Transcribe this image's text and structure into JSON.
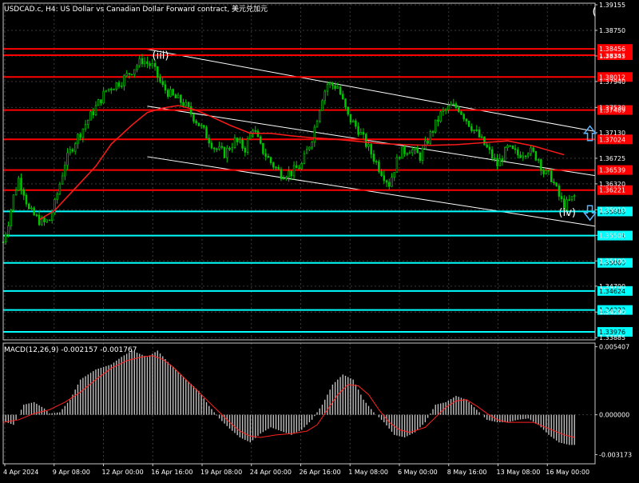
{
  "colors": {
    "background": "#000000",
    "grid": "#3a3a3a",
    "frame": "#c8c8c8",
    "candle": "#00c800",
    "resistance": "#ff0000",
    "support": "#00ffff",
    "channel": "#ffffff",
    "ma": "#ff1a1a",
    "macd_hist": "#c0c0c0",
    "macd_signal": "#ff2020",
    "text": "#ffffff",
    "arrow": "#5ab4ff"
  },
  "chart_data": [
    {
      "type": "candlestick",
      "title": "USDCAD.c, H4:  US Dollar vs Canadian Dollar Forward contract, 美元兑加元",
      "ylim": [
        1.3385,
        1.3918
      ],
      "y_ticks": [
        "1.39155",
        "1.38750",
        "1.38345",
        "1.37940",
        "1.37530",
        "1.37130",
        "1.36725",
        "1.36320",
        "1.35910",
        "1.35505",
        "1.35100",
        "1.34700",
        "1.34290",
        "1.33885"
      ],
      "x_ticks": [
        "4 Apr 2024",
        "9 Apr 08:00",
        "12 Apr 00:00",
        "16 Apr 16:00",
        "19 Apr 08:00",
        "24 Apr 00:00",
        "26 Apr 16:00",
        "1 May 08:00",
        "6 May 00:00",
        "8 May 16:00",
        "13 May 08:00",
        "16 May 00:00"
      ],
      "price_path": [
        [
          0,
          1.354
        ],
        [
          2,
          1.3572
        ],
        [
          4,
          1.3612
        ],
        [
          6,
          1.364
        ],
        [
          8,
          1.362
        ],
        [
          10,
          1.359
        ],
        [
          14,
          1.3574
        ],
        [
          16,
          1.357
        ],
        [
          18,
          1.3575
        ],
        [
          20,
          1.36
        ],
        [
          24,
          1.3665
        ],
        [
          28,
          1.37
        ],
        [
          34,
          1.374
        ],
        [
          40,
          1.378
        ],
        [
          46,
          1.3795
        ],
        [
          50,
          1.3812
        ],
        [
          54,
          1.3828
        ],
        [
          58,
          1.3818
        ],
        [
          62,
          1.3785
        ],
        [
          66,
          1.377
        ],
        [
          70,
          1.376
        ],
        [
          74,
          1.3738
        ],
        [
          78,
          1.3715
        ],
        [
          82,
          1.369
        ],
        [
          86,
          1.368
        ],
        [
          90,
          1.37
        ],
        [
          94,
          1.3688
        ],
        [
          97,
          1.3722
        ],
        [
          100,
          1.369
        ],
        [
          104,
          1.3666
        ],
        [
          108,
          1.3648
        ],
        [
          112,
          1.365
        ],
        [
          116,
          1.3662
        ],
        [
          120,
          1.3705
        ],
        [
          124,
          1.377
        ],
        [
          126,
          1.379
        ],
        [
          130,
          1.3786
        ],
        [
          134,
          1.3738
        ],
        [
          138,
          1.3718
        ],
        [
          142,
          1.3688
        ],
        [
          146,
          1.3658
        ],
        [
          150,
          1.3632
        ],
        [
          154,
          1.368
        ],
        [
          158,
          1.3688
        ],
        [
          162,
          1.3675
        ],
        [
          166,
          1.371
        ],
        [
          170,
          1.3742
        ],
        [
          174,
          1.3755
        ],
        [
          177,
          1.3752
        ],
        [
          181,
          1.3728
        ],
        [
          184,
          1.3712
        ],
        [
          188,
          1.3688
        ],
        [
          192,
          1.3662
        ],
        [
          196,
          1.3688
        ],
        [
          200,
          1.3678
        ],
        [
          204,
          1.3686
        ],
        [
          208,
          1.3672
        ],
        [
          210,
          1.365
        ],
        [
          213,
          1.3642
        ],
        [
          216,
          1.3612
        ],
        [
          218,
          1.3596
        ],
        [
          220,
          1.3604
        ],
        [
          222,
          1.3612
        ]
      ],
      "moving_average": [
        [
          14,
          1.3575
        ],
        [
          20,
          1.359
        ],
        [
          28,
          1.3625
        ],
        [
          36,
          1.366
        ],
        [
          42,
          1.3695
        ],
        [
          50,
          1.3725
        ],
        [
          56,
          1.3745
        ],
        [
          62,
          1.3752
        ],
        [
          68,
          1.3756
        ],
        [
          74,
          1.375
        ],
        [
          80,
          1.374
        ],
        [
          88,
          1.3725
        ],
        [
          96,
          1.3712
        ],
        [
          104,
          1.3712
        ],
        [
          112,
          1.3708
        ],
        [
          120,
          1.3705
        ],
        [
          128,
          1.3703
        ],
        [
          136,
          1.37
        ],
        [
          146,
          1.3696
        ],
        [
          156,
          1.3694
        ],
        [
          166,
          1.3693
        ],
        [
          176,
          1.3694
        ],
        [
          186,
          1.3697
        ],
        [
          196,
          1.37
        ],
        [
          206,
          1.3692
        ],
        [
          212,
          1.3685
        ],
        [
          218,
          1.3678
        ]
      ],
      "resistance_levels": [
        "1.38357",
        "1.38456",
        "1.38012",
        "1.37489",
        "1.37024",
        "1.36539",
        "1.36221"
      ],
      "support_levels": [
        "1.35883",
        "1.35501",
        "1.35069",
        "1.34624",
        "1.34323",
        "1.33976"
      ],
      "channel_lines": [
        {
          "from": [
            56,
            1.3845
          ],
          "to": [
            230,
            1.3715
          ]
        },
        {
          "from": [
            56,
            1.3755
          ],
          "to": [
            230,
            1.3645
          ]
        },
        {
          "from": [
            56,
            1.3675
          ],
          "to": [
            230,
            1.3565
          ]
        }
      ],
      "annotations": [
        {
          "text": "(iii)",
          "x": 61,
          "y": 1.3835
        },
        {
          "text": "(iv)",
          "x": 219,
          "y": 1.3586
        },
        {
          "text": "(",
          "x": 232,
          "y": 1.3905
        }
      ],
      "arrows": [
        {
          "direction": "up",
          "x": 228,
          "y": 1.3712
        },
        {
          "direction": "down",
          "x": 228,
          "y": 1.3586
        }
      ]
    },
    {
      "type": "bar",
      "title": "MACD(12,26,9) -0.002157 -0.001767",
      "ylim": [
        -0.0039,
        0.0057
      ],
      "y_ticks": [
        "0.005407",
        "0.000000",
        "-0.003173"
      ],
      "histogram": [
        [
          0,
          -0.0005
        ],
        [
          4,
          -0.0008
        ],
        [
          8,
          0.0008
        ],
        [
          12,
          0.001
        ],
        [
          16,
          0.0005
        ],
        [
          18,
          0.0001
        ],
        [
          22,
          0.0002
        ],
        [
          26,
          0.0012
        ],
        [
          30,
          0.0028
        ],
        [
          36,
          0.0036
        ],
        [
          42,
          0.004
        ],
        [
          46,
          0.0046
        ],
        [
          50,
          0.0051
        ],
        [
          56,
          0.0046
        ],
        [
          60,
          0.0051
        ],
        [
          64,
          0.0042
        ],
        [
          70,
          0.003
        ],
        [
          76,
          0.0019
        ],
        [
          80,
          0.0007
        ],
        [
          84,
          -0.0003
        ],
        [
          88,
          -0.0011
        ],
        [
          92,
          -0.0018
        ],
        [
          96,
          -0.0022
        ],
        [
          100,
          -0.0015
        ],
        [
          104,
          -0.001
        ],
        [
          108,
          -0.0013
        ],
        [
          112,
          -0.0016
        ],
        [
          116,
          -0.0012
        ],
        [
          120,
          -0.0004
        ],
        [
          124,
          0.0008
        ],
        [
          128,
          0.0024
        ],
        [
          132,
          0.0032
        ],
        [
          136,
          0.0028
        ],
        [
          140,
          0.0012
        ],
        [
          144,
          0.0002
        ],
        [
          148,
          -0.0006
        ],
        [
          152,
          -0.0016
        ],
        [
          156,
          -0.0018
        ],
        [
          160,
          -0.0014
        ],
        [
          164,
          -0.0006
        ],
        [
          168,
          0.0008
        ],
        [
          172,
          0.001
        ],
        [
          176,
          0.0015
        ],
        [
          180,
          0.0012
        ],
        [
          184,
          0.0004
        ],
        [
          188,
          -0.0004
        ],
        [
          192,
          -0.0006
        ],
        [
          196,
          -0.0006
        ],
        [
          200,
          -0.0004
        ],
        [
          204,
          -0.0003
        ],
        [
          208,
          -0.0008
        ],
        [
          212,
          -0.0016
        ],
        [
          216,
          -0.0022
        ],
        [
          220,
          -0.0024
        ]
      ],
      "signal": [
        [
          0,
          -0.0006
        ],
        [
          6,
          -0.0004
        ],
        [
          12,
          0.0001
        ],
        [
          18,
          0.0004
        ],
        [
          24,
          0.001
        ],
        [
          30,
          0.0018
        ],
        [
          36,
          0.0028
        ],
        [
          42,
          0.0037
        ],
        [
          48,
          0.0043
        ],
        [
          54,
          0.0046
        ],
        [
          58,
          0.0047
        ],
        [
          62,
          0.0044
        ],
        [
          66,
          0.0038
        ],
        [
          70,
          0.003
        ],
        [
          76,
          0.0018
        ],
        [
          80,
          0.001
        ],
        [
          84,
          0.0002
        ],
        [
          88,
          -0.0006
        ],
        [
          92,
          -0.0013
        ],
        [
          96,
          -0.0017
        ],
        [
          100,
          -0.0018
        ],
        [
          106,
          -0.0016
        ],
        [
          112,
          -0.0015
        ],
        [
          118,
          -0.0013
        ],
        [
          122,
          -0.0008
        ],
        [
          126,
          0.0004
        ],
        [
          130,
          0.0016
        ],
        [
          134,
          0.0024
        ],
        [
          138,
          0.0023
        ],
        [
          142,
          0.0016
        ],
        [
          146,
          0.0004
        ],
        [
          150,
          -0.0006
        ],
        [
          154,
          -0.0012
        ],
        [
          158,
          -0.0014
        ],
        [
          164,
          -0.001
        ],
        [
          168,
          -0.0002
        ],
        [
          172,
          0.0006
        ],
        [
          176,
          0.0011
        ],
        [
          180,
          0.0012
        ],
        [
          184,
          0.0007
        ],
        [
          188,
          0.0001
        ],
        [
          192,
          -0.0004
        ],
        [
          196,
          -0.0006
        ],
        [
          200,
          -0.0006
        ],
        [
          206,
          -0.0006
        ],
        [
          212,
          -0.0011
        ],
        [
          218,
          -0.0016
        ],
        [
          222,
          -0.0018
        ]
      ]
    }
  ]
}
